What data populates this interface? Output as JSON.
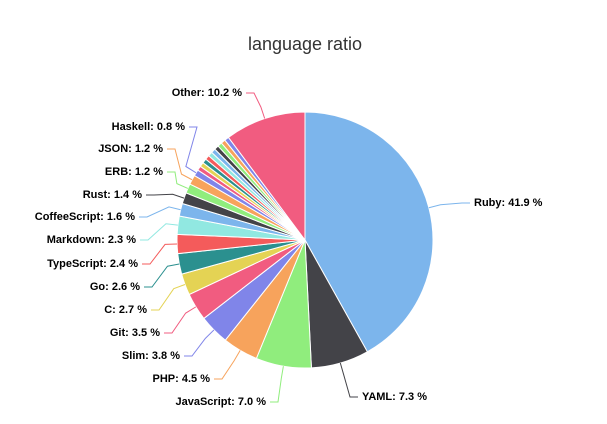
{
  "chart_data": {
    "type": "pie",
    "title": "language ratio",
    "categories": [
      "Ruby",
      "YAML",
      "JavaScript",
      "PHP",
      "Slim",
      "Git",
      "C",
      "Go",
      "TypeScript",
      "Markdown",
      "CoffeeScript",
      "Rust",
      "ERB",
      "JSON",
      "Haskell",
      null,
      null,
      null,
      null,
      null,
      null,
      null,
      null,
      null,
      null,
      "Other"
    ],
    "values": [
      41.9,
      7.3,
      7.0,
      4.5,
      3.8,
      3.5,
      2.7,
      2.6,
      2.4,
      2.3,
      1.6,
      1.4,
      1.2,
      1.2,
      0.8,
      0.56,
      0.56,
      0.56,
      0.56,
      0.56,
      0.56,
      0.56,
      0.56,
      0.56,
      0.56,
      10.2
    ],
    "value_labels": [
      "Ruby: 41.9 %",
      "YAML: 7.3 %",
      "JavaScript: 7.0 %",
      "PHP: 4.5 %",
      "Slim: 3.8 %",
      "Git: 3.5 %",
      "C: 2.7 %",
      "Go: 2.6 %",
      "TypeScript: 2.4 %",
      "Markdown: 2.3 %",
      "CoffeeScript: 1.6 %",
      "Rust: 1.4 %",
      "ERB: 1.2 %",
      "JSON: 1.2 %",
      "Haskell: 0.8 %",
      null,
      null,
      null,
      null,
      null,
      null,
      null,
      null,
      null,
      null,
      "Other: 10.2 %"
    ],
    "colors": [
      "#7cb5ec",
      "#434348",
      "#90ed7d",
      "#f7a35c",
      "#8085e9",
      "#f15c80",
      "#e4d354",
      "#2b908f",
      "#f45b5b",
      "#91e8e1",
      "#7cb5ec",
      "#434348",
      "#90ed7d",
      "#f7a35c",
      "#8085e9",
      "#f15c80",
      "#e4d354",
      "#2b908f",
      "#f45b5b",
      "#91e8e1",
      "#7cb5ec",
      "#434348",
      "#90ed7d",
      "#f7a35c",
      "#8085e9",
      "#f15c80"
    ]
  }
}
